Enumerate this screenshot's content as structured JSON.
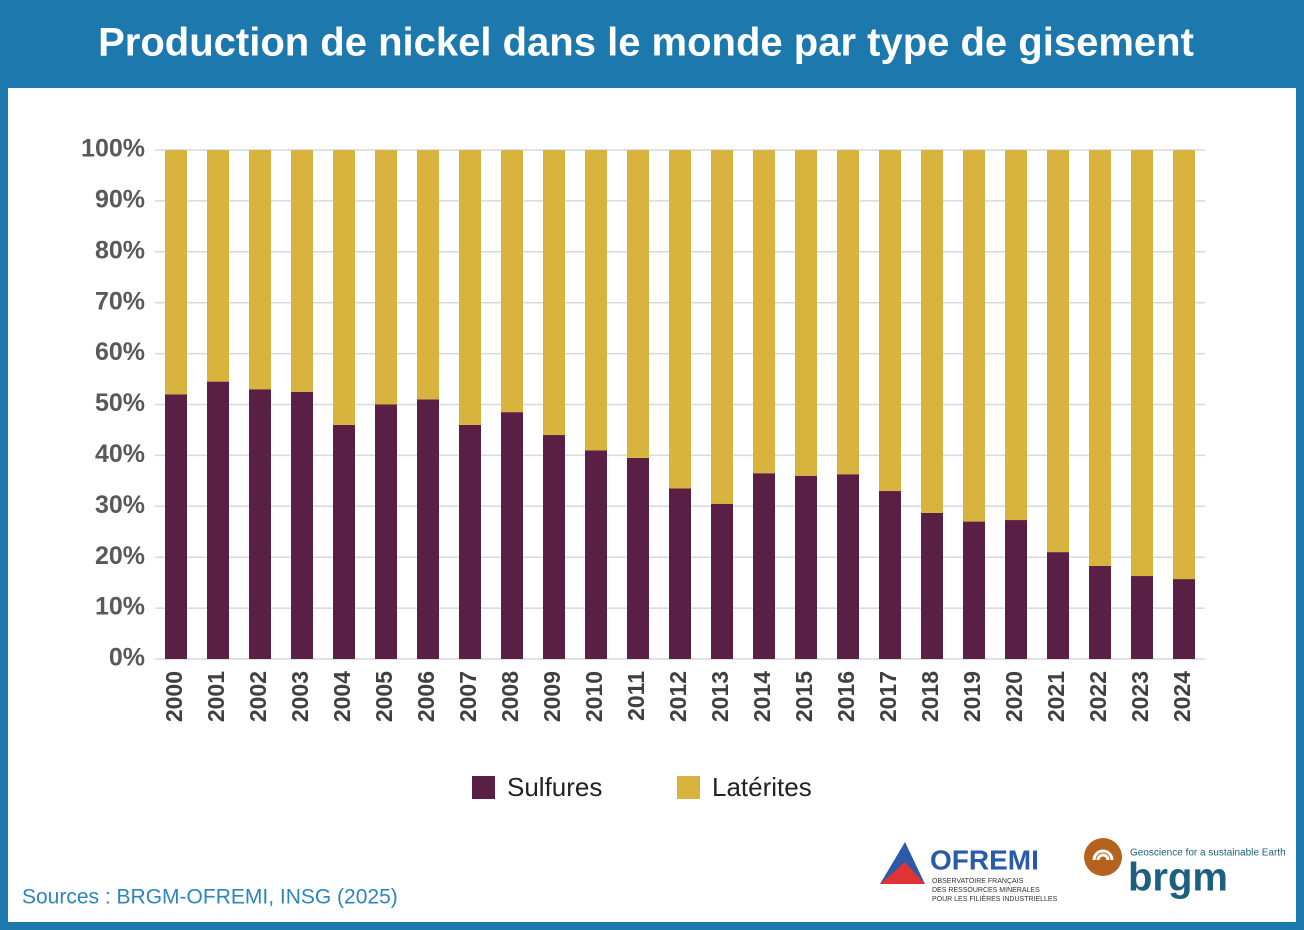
{
  "chart_data": {
    "type": "stacked-bar",
    "title": "Production de nickel dans le monde par type de gisement",
    "categories": [
      "2000",
      "2001",
      "2002",
      "2003",
      "2004",
      "2005",
      "2006",
      "2007",
      "2008",
      "2009",
      "2010",
      "2011",
      "2012",
      "2013",
      "2014",
      "2015",
      "2016",
      "2017",
      "2018",
      "2019",
      "2020",
      "2021",
      "2022",
      "2023",
      "2024"
    ],
    "series": [
      {
        "name": "Sulfures",
        "color": "#5a1f45",
        "values": [
          52,
          54.5,
          53,
          52.5,
          46,
          50,
          51,
          46,
          48.5,
          44,
          41,
          39.5,
          33.5,
          30.5,
          36.5,
          36,
          36.3,
          33,
          28.7,
          27,
          27.3,
          21,
          18.3,
          16.3,
          15.7
        ]
      },
      {
        "name": "Latérites",
        "color": "#d8b43f",
        "values": [
          48,
          45.5,
          47,
          47.5,
          54,
          50,
          49,
          54,
          51.5,
          56,
          59,
          60.5,
          66.5,
          69.5,
          63.5,
          64,
          63.7,
          67,
          71.3,
          73,
          72.7,
          79,
          81.7,
          83.7,
          84.3
        ]
      }
    ],
    "ylim": [
      0,
      100
    ],
    "yticks": [
      {
        "value": 0,
        "label": "0%"
      },
      {
        "value": 10,
        "label": "10%"
      },
      {
        "value": 20,
        "label": "20%"
      },
      {
        "value": 30,
        "label": "30%"
      },
      {
        "value": 40,
        "label": "40%"
      },
      {
        "value": 50,
        "label": "50%"
      },
      {
        "value": 60,
        "label": "60%"
      },
      {
        "value": 70,
        "label": "70%"
      },
      {
        "value": 80,
        "label": "80%"
      },
      {
        "value": 90,
        "label": "90%"
      },
      {
        "value": 100,
        "label": "100%"
      }
    ],
    "grid": true
  },
  "footer": {
    "source": "Sources : BRGM-OFREMI, INSG (2025)",
    "ofremi": {
      "name": "OFREMI",
      "line1": "OBSERVATOIRE FRANÇAIS",
      "line2": "DES RESSOURCES MINERALES",
      "line3": "POUR LES FILIÈRES INDUSTRIELLES"
    },
    "brgm": {
      "name": "brgm",
      "tagline": "Geoscience for a sustainable Earth"
    }
  }
}
